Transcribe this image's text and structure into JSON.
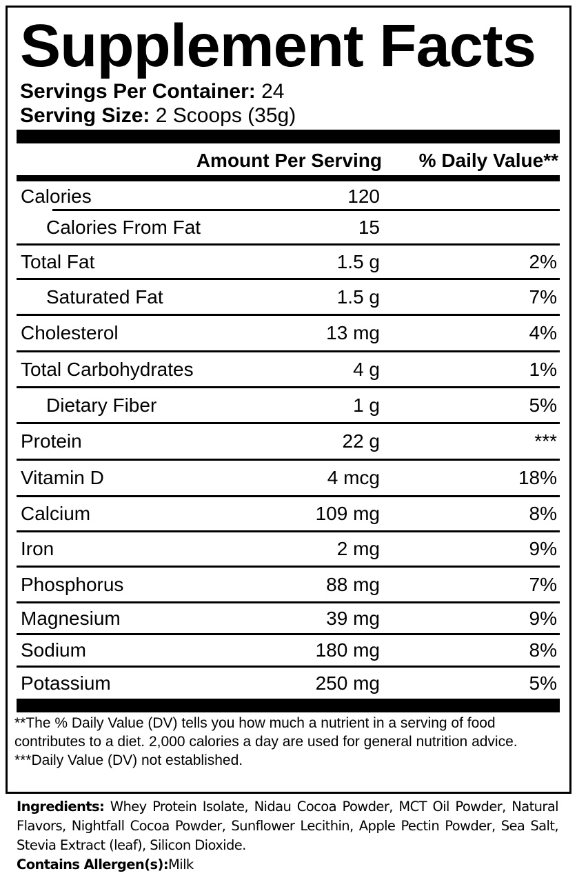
{
  "title": "Supplement Facts",
  "servings_per_container": {
    "label": "Servings Per Container:",
    "value": "24"
  },
  "serving_size": {
    "label": "Serving Size:",
    "value": "2 Scoops (35g)"
  },
  "header": {
    "amount": "Amount Per Serving",
    "dv": "% Daily Value**"
  },
  "rows": [
    {
      "name": "Calories",
      "amount": "120",
      "dv": ""
    },
    {
      "name": "Calories From Fat",
      "amount": "15",
      "dv": ""
    },
    {
      "name": "Total Fat",
      "amount": "1.5 g",
      "dv": "2%"
    },
    {
      "name": "Saturated Fat",
      "amount": "1.5 g",
      "dv": "7%"
    },
    {
      "name": "Cholesterol",
      "amount": "13 mg",
      "dv": "4%"
    },
    {
      "name": "Total Carbohydrates",
      "amount": "4 g",
      "dv": "1%"
    },
    {
      "name": "Dietary Fiber",
      "amount": "1 g",
      "dv": "5%"
    },
    {
      "name": "Protein",
      "amount": "22 g",
      "dv": "***"
    },
    {
      "name": "Vitamin D",
      "amount": "4 mcg",
      "dv": "18%"
    },
    {
      "name": "Calcium",
      "amount": "109 mg",
      "dv": "8%"
    },
    {
      "name": "Iron",
      "amount": "2 mg",
      "dv": "9%"
    },
    {
      "name": "Phosphorus",
      "amount": "88 mg",
      "dv": "7%"
    },
    {
      "name": "Magnesium",
      "amount": "39 mg",
      "dv": "9%"
    },
    {
      "name": "Sodium",
      "amount": "180 mg",
      "dv": "8%"
    },
    {
      "name": "Potassium",
      "amount": "250 mg",
      "dv": "5%"
    }
  ],
  "footnotes": [
    "**The % Daily Value (DV) tells you how much a nutrient in a serving of food contributes to a diet. 2,000 calories a day are used for general nutrition advice.",
    "***Daily Value (DV) not established."
  ],
  "ingredients": {
    "label": "Ingredients:",
    "text": "Whey Protein Isolate, Nidau Cocoa Powder, MCT Oil Powder, Natural Flavors, Nightfall Cocoa Powder, Sunflower Lecithin, Apple Pectin Powder, Sea Salt, Stevia Extract (leaf), Silicon Dioxide."
  },
  "allergens": {
    "label": "Contains Allergen(s):",
    "text": "Milk"
  }
}
